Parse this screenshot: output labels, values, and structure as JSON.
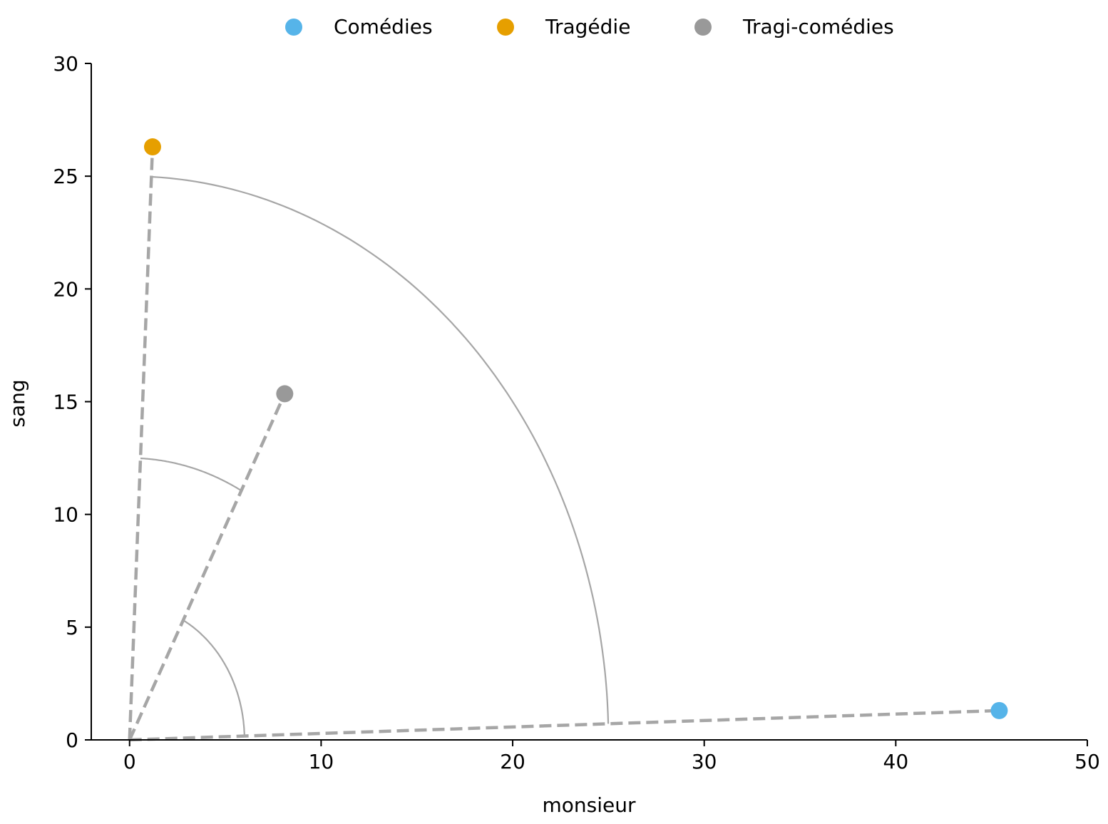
{
  "chart_data": {
    "type": "scatter",
    "title": "",
    "xlabel": "monsieur",
    "ylabel": "sang",
    "xlim": [
      -2,
      50
    ],
    "ylim": [
      0,
      30
    ],
    "xticks": [
      0,
      10,
      20,
      30,
      40,
      50
    ],
    "yticks": [
      0,
      5,
      10,
      15,
      20,
      25,
      30
    ],
    "grid": false,
    "legend": {
      "placement": "top-center"
    },
    "series": [
      {
        "name": "Comédies",
        "color": "#56B4E9",
        "x": 45.4,
        "y": 1.3
      },
      {
        "name": "Tragédie",
        "color": "#E69F00",
        "x": 1.2,
        "y": 26.3
      },
      {
        "name": "Tragi-comédies",
        "color": "#999999",
        "x": 8.1,
        "y": 15.35
      }
    ],
    "vector_lines": {
      "from": [
        0,
        0
      ],
      "style": "dashed",
      "color": "#a6a6a6"
    },
    "angle_arcs": [
      {
        "between": [
          "Comédies",
          "Tragédie"
        ],
        "radius": 25
      },
      {
        "between": [
          "Tragédie",
          "Tragi-comédies"
        ],
        "radius": 12.5
      },
      {
        "between": [
          "Tragi-comédies",
          "Comédies"
        ],
        "radius": 6
      }
    ]
  }
}
